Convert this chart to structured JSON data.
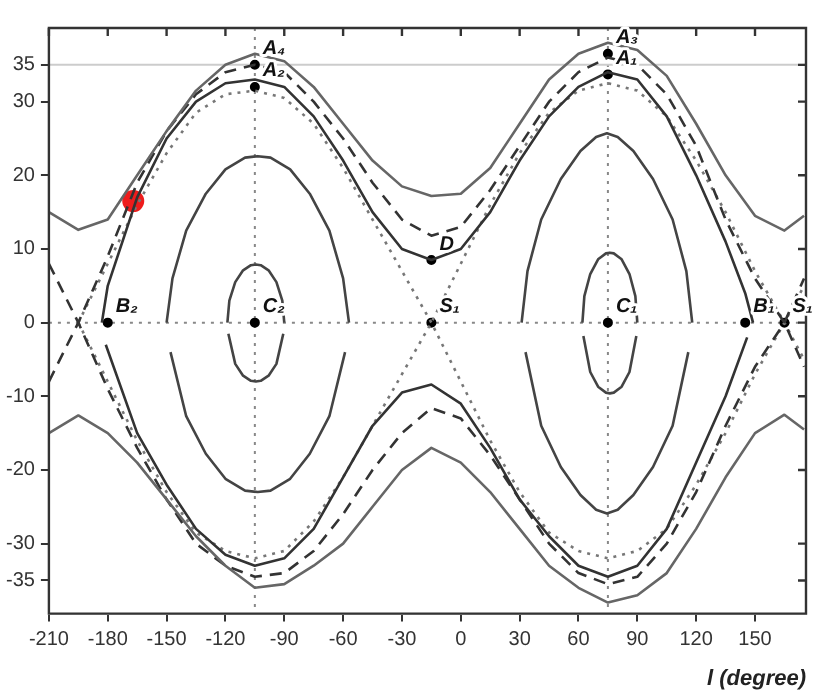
{
  "chart_data": {
    "type": "line",
    "xlabel": "l (degree)",
    "xlim": [
      -210,
      176
    ],
    "xticks": [
      -210,
      -180,
      -150,
      -120,
      -90,
      -60,
      -30,
      0,
      30,
      60,
      90,
      120,
      150
    ],
    "ylim": [
      -39.5,
      40
    ],
    "yticks": [
      -35,
      -30,
      -20,
      -10,
      0,
      10,
      20,
      30,
      35
    ],
    "grid": false,
    "legend": false,
    "marker": "none",
    "series": [
      {
        "color": "#666666",
        "line_style": "solid",
        "x": [
          -210,
          -195,
          -180,
          -165,
          -150,
          -135,
          -120,
          -105,
          -90,
          -75,
          -60,
          -45,
          -30,
          -15,
          0,
          15,
          30,
          45,
          60,
          75,
          90,
          105,
          120,
          135,
          150,
          165,
          175
        ],
        "values": [
          15,
          12.6,
          14,
          20,
          26,
          31.5,
          35,
          36.5,
          35.5,
          32,
          27,
          22,
          18.5,
          17.2,
          17.5,
          21,
          27,
          33,
          36.5,
          38,
          37,
          33.5,
          27,
          20,
          14.5,
          12.5,
          14.5
        ]
      },
      {
        "color": "#666666",
        "line_style": "solid",
        "x": [
          -210,
          -195,
          -180,
          -165,
          -150,
          -135,
          -120,
          -105,
          -90,
          -75,
          -60,
          -45,
          -30,
          -15,
          0,
          15,
          30,
          45,
          60,
          75,
          90,
          105,
          120,
          135,
          150,
          165,
          175
        ],
        "values": [
          -15,
          -12.6,
          -15,
          -19,
          -24,
          -29,
          -33,
          -36,
          -35.5,
          -33,
          -30,
          -25,
          -20,
          -17,
          -19,
          -23,
          -28,
          -33,
          -36,
          -38,
          -37,
          -34,
          -28,
          -21,
          -15,
          -12.5,
          -14.5
        ]
      },
      {
        "color": "#333333",
        "line_style": "dashed",
        "x": [
          -210,
          -195,
          -180,
          -165,
          -150,
          -135,
          -120,
          -105,
          -90,
          -75,
          -60,
          -45,
          -30,
          -15,
          0,
          15,
          30,
          45,
          60,
          75,
          90,
          105,
          120,
          135,
          150,
          165,
          175
        ],
        "values": [
          -8,
          0,
          9,
          19,
          26,
          31,
          34,
          35,
          34,
          30,
          25,
          19,
          14,
          11.8,
          13,
          18,
          24,
          30,
          34,
          36,
          35,
          31,
          24,
          14,
          6,
          0,
          -6
        ]
      },
      {
        "color": "#333333",
        "line_style": "dashed",
        "x": [
          -210,
          -195,
          -180,
          -165,
          -150,
          -135,
          -120,
          -105,
          -90,
          -75,
          -60,
          -45,
          -30,
          -15,
          0,
          15,
          30,
          45,
          60,
          75,
          90,
          105,
          120,
          135,
          150,
          165,
          175
        ],
        "values": [
          8,
          0,
          -9,
          -17,
          -24,
          -30,
          -33,
          -34.5,
          -34,
          -31,
          -26,
          -20,
          -15,
          -11.6,
          -13,
          -18,
          -24,
          -30,
          -34,
          -35.5,
          -34.5,
          -30,
          -23,
          -14,
          -6,
          0,
          6
        ]
      },
      {
        "color": "#333333",
        "line_style": "solid",
        "x": [
          -183,
          -180,
          -165,
          -150,
          -135,
          -120,
          -105,
          -90,
          -75,
          -60,
          -45,
          -30,
          -15,
          0,
          15,
          30,
          45,
          60,
          75,
          90,
          105,
          120,
          135,
          145,
          149
        ],
        "values": [
          0,
          5,
          17,
          25,
          30,
          32.5,
          33,
          32,
          28,
          22,
          15,
          10,
          8.5,
          10,
          15,
          22,
          28,
          32,
          34,
          33,
          28,
          20,
          11,
          4,
          0
        ]
      },
      {
        "color": "#333333",
        "line_style": "solid",
        "x": [
          -181,
          -165,
          -150,
          -135,
          -120,
          -105,
          -90,
          -75,
          -60,
          -45,
          -30,
          -15,
          0,
          15,
          30,
          45,
          60,
          75,
          90,
          105,
          120,
          135,
          146
        ],
        "values": [
          -3,
          -15,
          -22,
          -28,
          -31.5,
          -33,
          -32,
          -28,
          -21,
          -14,
          -9.5,
          -8.4,
          -11,
          -17,
          -24,
          -29,
          -33,
          -34.5,
          -33,
          -28,
          -19,
          -10,
          -2
        ]
      },
      {
        "color": "#777777",
        "line_style": "dotted",
        "x": [
          -195,
          -180,
          -165,
          -150,
          -135,
          -120,
          -105,
          -90,
          -75,
          -60,
          -45,
          -30,
          -15,
          0,
          15,
          30,
          45,
          60,
          75,
          90,
          105,
          120,
          135,
          150,
          165,
          175
        ],
        "values": [
          0,
          8,
          16,
          23,
          28.5,
          31,
          31.5,
          30.5,
          27,
          21,
          14,
          7,
          0,
          -8,
          -16,
          -23,
          -28.5,
          -31,
          -32,
          -31,
          -28,
          -22,
          -15,
          -7,
          0,
          5
        ]
      },
      {
        "color": "#777777",
        "line_style": "dotted",
        "x": [
          -195,
          -180,
          -165,
          -150,
          -135,
          -120,
          -105,
          -90,
          -75,
          -60,
          -45,
          -30,
          -15,
          0,
          15,
          30,
          45,
          60,
          75,
          90,
          105,
          120,
          135,
          150,
          165,
          175
        ],
        "values": [
          0,
          -8,
          -16,
          -23,
          -28.5,
          -31,
          -32,
          -31,
          -27,
          -21,
          -14,
          -7,
          0,
          8,
          16,
          23,
          28.5,
          31.5,
          32.5,
          31.5,
          28,
          22,
          15,
          7,
          0,
          -5
        ]
      },
      {
        "color": "#444444",
        "line_style": "solid",
        "x": [
          -150,
          -147,
          -140,
          -130,
          -120,
          -110,
          -103.5,
          -97,
          -87,
          -77,
          -67,
          -60,
          -57
        ],
        "values": [
          0,
          6,
          12.5,
          17.5,
          20.8,
          22.4,
          22.6,
          22.4,
          20.8,
          17.5,
          12.5,
          6,
          0
        ]
      },
      {
        "color": "#444444",
        "line_style": "solid",
        "x": [
          -148,
          -140,
          -130,
          -120,
          -110,
          -103.5,
          -97,
          -87,
          -77,
          -67,
          -59
        ],
        "values": [
          -4,
          -12.7,
          -17.8,
          -21.2,
          -22.8,
          -23,
          -22.8,
          -21.2,
          -17.8,
          -12.7,
          -4
        ]
      },
      {
        "color": "#444444",
        "line_style": "solid",
        "x": [
          31,
          34,
          41,
          51,
          61,
          69,
          74.5,
          80,
          88,
          98,
          108,
          115,
          118
        ],
        "values": [
          0,
          7,
          14,
          19.5,
          23.3,
          25.2,
          25.7,
          25.2,
          23.3,
          19.5,
          14,
          7,
          0
        ]
      },
      {
        "color": "#444444",
        "line_style": "solid",
        "x": [
          33,
          41,
          51,
          61,
          69,
          74.5,
          80,
          88,
          98,
          108,
          116
        ],
        "values": [
          -4,
          -14,
          -19.6,
          -23.4,
          -25.4,
          -25.9,
          -25.4,
          -23.4,
          -19.6,
          -14,
          -4
        ]
      },
      {
        "color": "#444444",
        "line_style": "solid",
        "x": [
          -119,
          -118,
          -115,
          -111,
          -107,
          -104.5,
          -102,
          -98,
          -94,
          -91,
          -90
        ],
        "values": [
          0,
          3,
          5.5,
          7.1,
          7.8,
          7.9,
          7.8,
          7.1,
          5.5,
          3,
          0
        ]
      },
      {
        "color": "#444444",
        "line_style": "solid",
        "x": [
          -118.5,
          -115,
          -111,
          -107,
          -104.5,
          -102,
          -98,
          -94,
          -90.5
        ],
        "values": [
          -1.5,
          -5.6,
          -7.2,
          -7.9,
          -8,
          -7.9,
          -7.2,
          -5.6,
          -1.5
        ]
      },
      {
        "color": "#444444",
        "line_style": "solid",
        "x": [
          62,
          63,
          66,
          70,
          74,
          76,
          78,
          82,
          86,
          89,
          90
        ],
        "values": [
          0,
          3.6,
          6.6,
          8.6,
          9.4,
          9.5,
          9.4,
          8.6,
          6.6,
          3.6,
          0
        ]
      },
      {
        "color": "#444444",
        "line_style": "solid",
        "x": [
          62.5,
          66,
          70,
          74,
          76,
          78,
          82,
          86,
          89.5
        ],
        "values": [
          -1.8,
          -6.7,
          -8.7,
          -9.5,
          -9.6,
          -9.5,
          -8.7,
          -6.7,
          -1.8
        ]
      },
      {
        "type": "scatter",
        "color": "#000000",
        "marker": "circle",
        "x": [
          -105,
          -105,
          75,
          75,
          -105,
          75,
          -15,
          165,
          -180,
          145,
          -15
        ],
        "values": [
          35,
          32,
          36.5,
          33.7,
          0,
          0,
          0,
          0,
          0,
          0,
          8.5
        ]
      },
      {
        "type": "scatter",
        "color": "#ee1c1c",
        "marker": "circle",
        "x": [
          -167
        ],
        "values": [
          16.5
        ]
      }
    ],
    "ref_lines": [
      {
        "axis": "x",
        "value": -105,
        "color": "#888888",
        "line_style": "dotted"
      },
      {
        "axis": "x",
        "value": 75,
        "color": "#888888",
        "line_style": "dotted"
      },
      {
        "axis": "y",
        "value": 0,
        "color": "#888888",
        "line_style": "dotted"
      },
      {
        "axis": "y",
        "value": 35,
        "color": "#cccccc",
        "line_style": "solid"
      }
    ],
    "annotations": [
      {
        "text": "A₄",
        "x": -105,
        "y": 35
      },
      {
        "text": "A₂",
        "x": -105,
        "y": 32
      },
      {
        "text": "A₃",
        "x": 75,
        "y": 36.5
      },
      {
        "text": "A₁",
        "x": 75,
        "y": 33.7
      },
      {
        "text": "C₂",
        "x": -105,
        "y": 0
      },
      {
        "text": "C₁",
        "x": 75,
        "y": 0
      },
      {
        "text": "S₁",
        "x": -15,
        "y": 0
      },
      {
        "text": "S₁",
        "x": 165,
        "y": 0
      },
      {
        "text": "B₂",
        "x": -180,
        "y": 0
      },
      {
        "text": "B₁",
        "x": 145,
        "y": 0
      },
      {
        "text": "D",
        "x": -15,
        "y": 8.5
      }
    ]
  }
}
